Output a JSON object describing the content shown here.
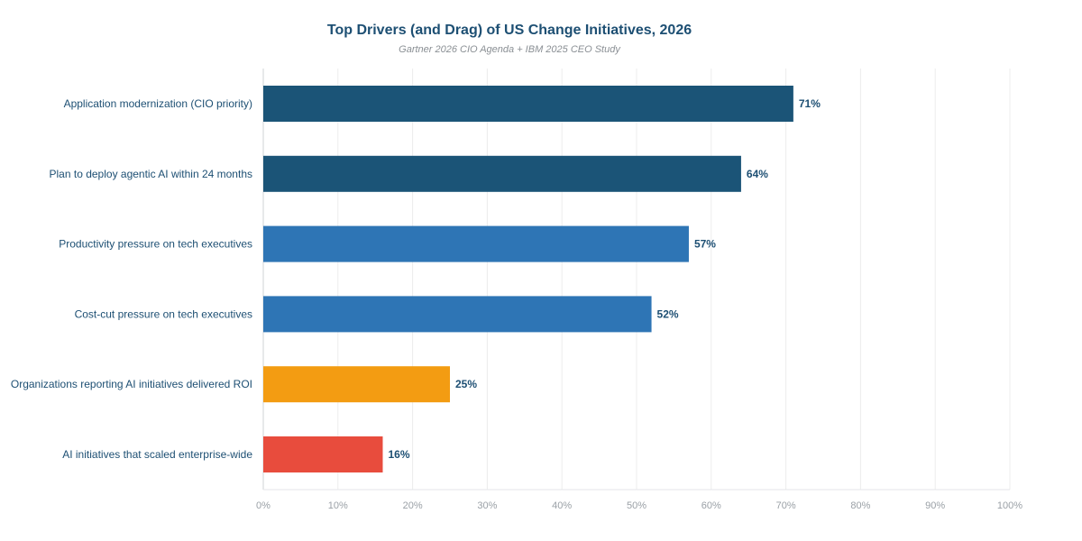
{
  "chart_data": {
    "type": "bar",
    "orientation": "horizontal",
    "title": "Top Drivers (and Drag) of US Change Initiatives, 2026",
    "subtitle": "Gartner 2026 CIO Agenda + IBM 2025 CEO Study",
    "xlabel": "",
    "ylabel": "",
    "xlim": [
      0,
      100
    ],
    "x_ticks": [
      "0%",
      "10%",
      "20%",
      "30%",
      "40%",
      "50%",
      "60%",
      "70%",
      "80%",
      "90%",
      "100%"
    ],
    "grid": "vertical",
    "categories": [
      "Application modernization (CIO priority)",
      "Plan to deploy agentic AI within 24 months",
      "Productivity pressure on tech executives",
      "Cost-cut pressure on tech executives",
      "Organizations reporting AI initiatives delivered ROI",
      "AI initiatives that scaled enterprise-wide"
    ],
    "values": [
      71,
      64,
      57,
      52,
      25,
      16
    ],
    "value_labels": [
      "71%",
      "64%",
      "57%",
      "52%",
      "25%",
      "16%"
    ],
    "bar_colors": [
      "#1b5477",
      "#1b5477",
      "#2e75b5",
      "#2e75b5",
      "#f39c12",
      "#e84c3d"
    ]
  }
}
